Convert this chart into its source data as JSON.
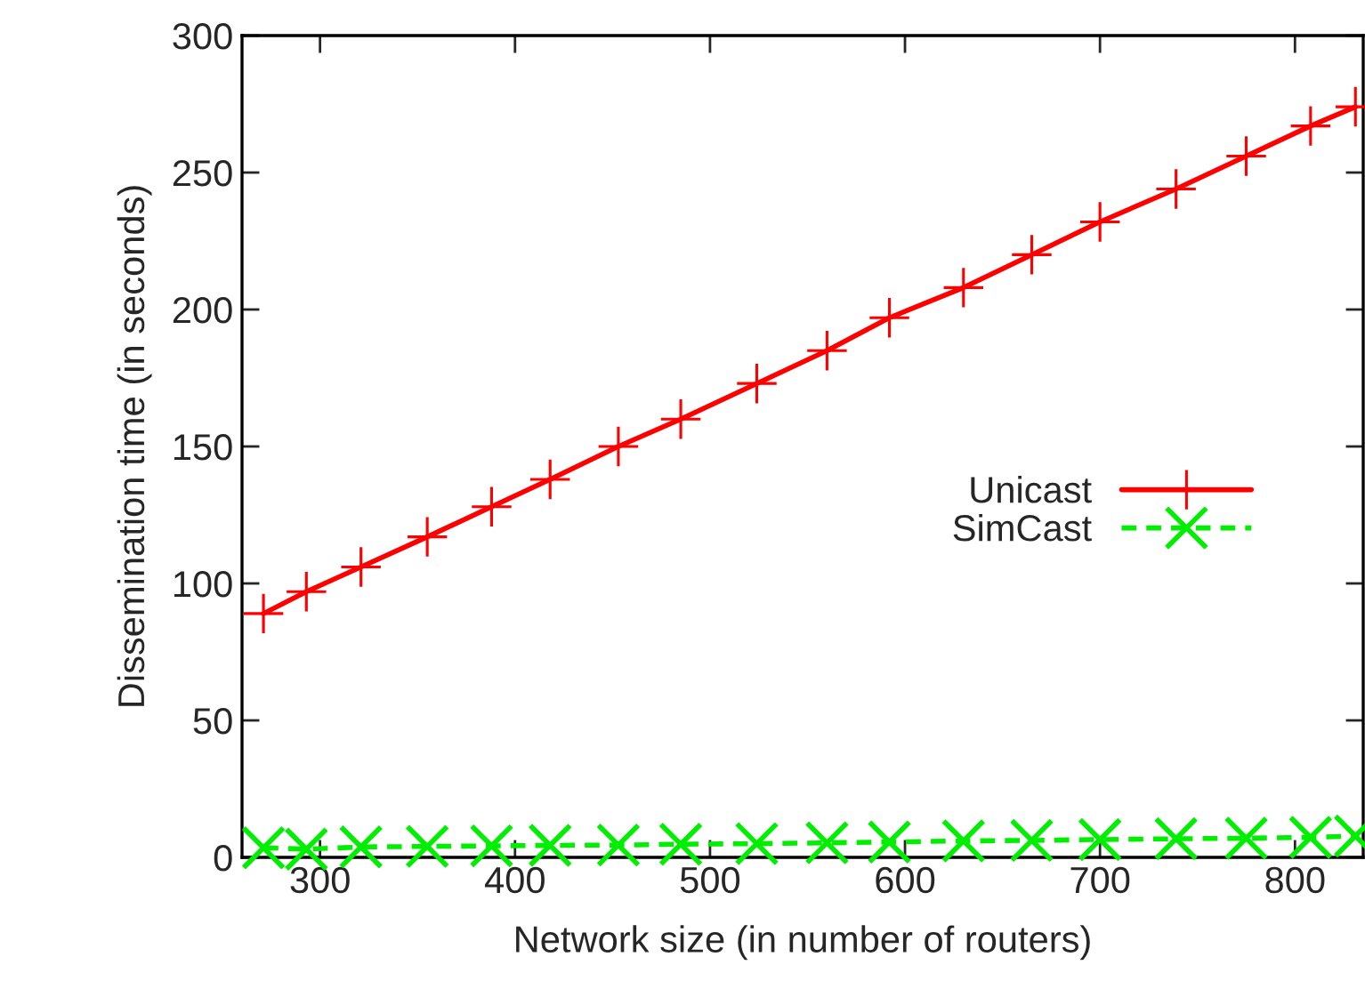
{
  "chart_data": {
    "type": "line",
    "xlabel": "Network size (in number of routers)",
    "ylabel": "Dissemination time (in seconds)",
    "x": [
      271,
      293,
      321,
      355,
      388,
      418,
      453,
      485,
      524,
      560,
      592,
      630,
      665,
      700,
      739,
      775,
      808,
      831
    ],
    "series": [
      {
        "name": "Unicast",
        "color": "#ff0000",
        "marker": "cross",
        "line_style": "solid",
        "values": [
          89,
          97,
          106,
          117,
          128,
          138,
          150,
          160,
          173,
          185,
          197,
          208,
          220,
          232,
          244,
          256,
          267,
          274
        ]
      },
      {
        "name": "SimCast",
        "color": "#00ee00",
        "marker": "x",
        "line_style": "dashed",
        "values": [
          3.5,
          3,
          3.8,
          4,
          4.2,
          4.4,
          4.5,
          4.8,
          5,
          5.3,
          5.6,
          6,
          6.2,
          6.5,
          6.8,
          7,
          7.3,
          7.8
        ]
      }
    ],
    "xlim": [
      260,
      835
    ],
    "ylim": [
      0,
      300
    ],
    "xticks": [
      300,
      400,
      500,
      600,
      700,
      800
    ],
    "yticks": [
      0,
      50,
      100,
      150,
      200,
      250,
      300
    ],
    "grid": false,
    "legend": "right"
  }
}
